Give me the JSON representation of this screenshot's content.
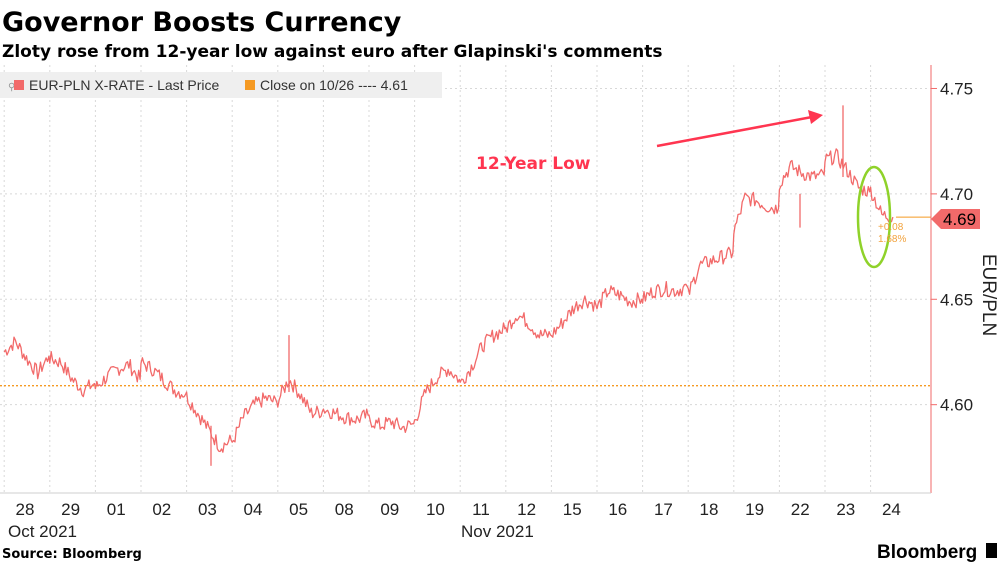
{
  "chart_data": {
    "type": "line",
    "title": "Governor Boosts Currency",
    "subtitle": "Zloty rose from 12-year low against euro after Glapinski's comments",
    "legend": [
      {
        "label": "EUR-PLN X-RATE - Last Price",
        "color": "#f26a6a"
      },
      {
        "label": "Close on 10/26 ---- 4.61",
        "color": "#f59a23"
      }
    ],
    "ylabel": "EUR/PLN",
    "ylim": [
      4.555,
      4.755
    ],
    "yticks": [
      "4.60",
      "4.65",
      "4.70",
      "4.75"
    ],
    "ytick_values": [
      4.6,
      4.65,
      4.7,
      4.75
    ],
    "x_categories": [
      "28",
      "29",
      "01",
      "02",
      "03",
      "04",
      "05",
      "08",
      "09",
      "10",
      "11",
      "12",
      "15",
      "16",
      "17",
      "18",
      "19",
      "22",
      "23",
      "24"
    ],
    "month_labels": [
      {
        "label": "Oct 2021",
        "at_category": "28"
      },
      {
        "label": "Nov 2021",
        "at_category": "11"
      }
    ],
    "reference_line": {
      "label": "Close on 10/26",
      "value": 4.609
    },
    "series": [
      {
        "name": "EUR-PLN X-RATE - Last Price",
        "values_by_day": [
          [
            4.625,
            4.63,
            4.622,
            4.615,
            4.623
          ],
          [
            4.622,
            4.62,
            4.612,
            4.607,
            4.61
          ],
          [
            4.608,
            4.613,
            4.617,
            4.619,
            4.612
          ],
          [
            4.62,
            4.617,
            4.612,
            4.607,
            4.605
          ],
          [
            4.604,
            4.596,
            4.588,
            4.58,
            4.583
          ],
          [
            4.582,
            4.594,
            4.6,
            4.603,
            4.601
          ],
          [
            4.602,
            4.612,
            4.605,
            4.596,
            4.597
          ],
          [
            4.598,
            4.596,
            4.594,
            4.593,
            4.595
          ],
          [
            4.593,
            4.59,
            4.592,
            4.589,
            4.591
          ],
          [
            4.592,
            4.606,
            4.613,
            4.617,
            4.612
          ],
          [
            4.61,
            4.618,
            4.628,
            4.633,
            4.636
          ],
          [
            4.636,
            4.643,
            4.639,
            4.633,
            4.633
          ],
          [
            4.633,
            4.639,
            4.646,
            4.65,
            4.647
          ],
          [
            4.646,
            4.654,
            4.652,
            4.649,
            4.65
          ],
          [
            4.65,
            4.654,
            4.655,
            4.654,
            4.656
          ],
          [
            4.652,
            4.666,
            4.668,
            4.67,
            4.672
          ],
          [
            4.682,
            4.698,
            4.697,
            4.694,
            4.693
          ],
          [
            4.705,
            4.713,
            4.71,
            4.708,
            4.709
          ],
          [
            4.716,
            4.718,
            4.711,
            4.703,
            4.701
          ],
          [
            4.702,
            4.69,
            4.689
          ]
        ]
      }
    ],
    "last_value": "4.69",
    "change_annotation": [
      "+0.08",
      "1.68%"
    ],
    "annotations": [
      "12-Year Low"
    ]
  },
  "footer": {
    "source": "Source: Bloomberg",
    "brand": "Bloomberg"
  },
  "colors": {
    "line": "#f26a6a",
    "reference": "#f59a23",
    "annotation": "#ff3550",
    "circle": "#8fd22a",
    "grid": "#d8d8d8"
  }
}
